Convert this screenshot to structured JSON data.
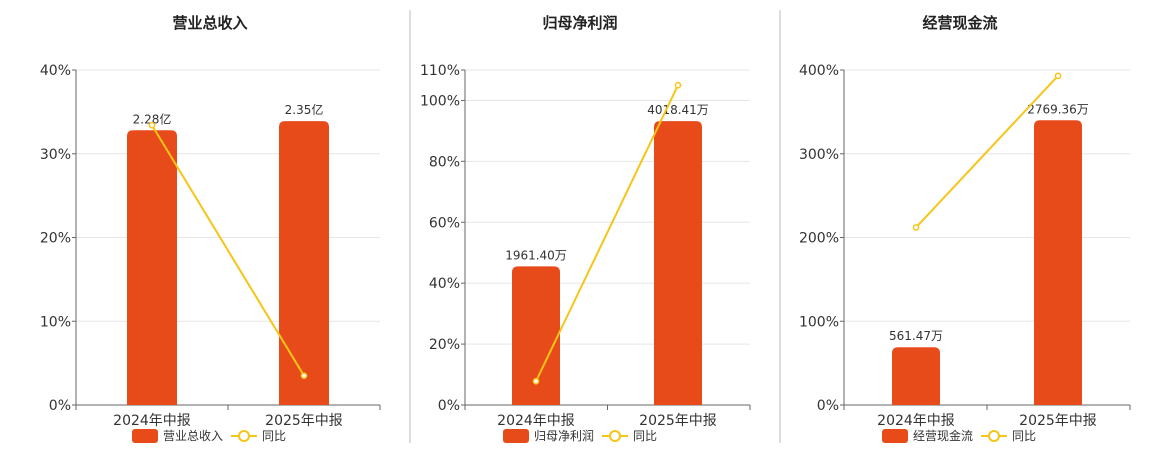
{
  "colors": {
    "bar": "#e84b1a",
    "line": "#f5c518",
    "grid": "#e6e6e6",
    "axis": "#666666",
    "divider": "#bbbbbb"
  },
  "chart_data": [
    {
      "type": "bar+line",
      "title": "营业总收入",
      "categories": [
        "2024年中报",
        "2025年中报"
      ],
      "series": [
        {
          "name": "营业总收入",
          "type": "bar",
          "values": [
            32.8,
            33.9
          ],
          "labels": [
            "2.28亿",
            "2.35亿"
          ]
        },
        {
          "name": "同比",
          "type": "line",
          "values": [
            33.4,
            3.5
          ]
        }
      ],
      "ylim": [
        0,
        40
      ],
      "yticks": [
        0,
        10,
        20,
        30,
        40
      ],
      "ytick_labels": [
        "0%",
        "10%",
        "20%",
        "30%",
        "40%"
      ],
      "grid": true,
      "legend": "bottom"
    },
    {
      "type": "bar+line",
      "title": "归母净利润",
      "categories": [
        "2024年中报",
        "2025年中报"
      ],
      "series": [
        {
          "name": "归母净利润",
          "type": "bar",
          "values": [
            45.5,
            93.2
          ],
          "labels": [
            "1961.40万",
            "4018.41万"
          ]
        },
        {
          "name": "同比",
          "type": "line",
          "values": [
            7.8,
            105.0
          ]
        }
      ],
      "ylim": [
        0,
        110
      ],
      "yticks": [
        0,
        20,
        40,
        60,
        80,
        100,
        110
      ],
      "ytick_labels": [
        "0%",
        "20%",
        "40%",
        "60%",
        "80%",
        "100%",
        "110%"
      ],
      "grid": true,
      "legend": "bottom"
    },
    {
      "type": "bar+line",
      "title": "经营现金流",
      "categories": [
        "2024年中报",
        "2025年中报"
      ],
      "series": [
        {
          "name": "经营现金流",
          "type": "bar",
          "values": [
            69,
            340
          ],
          "labels": [
            "561.47万",
            "2769.36万"
          ]
        },
        {
          "name": "同比",
          "type": "line",
          "values": [
            212,
            393
          ]
        }
      ],
      "ylim": [
        0,
        400
      ],
      "yticks": [
        0,
        100,
        200,
        300,
        400
      ],
      "ytick_labels": [
        "0%",
        "100%",
        "200%",
        "300%",
        "400%"
      ],
      "grid": true,
      "legend": "bottom"
    }
  ]
}
